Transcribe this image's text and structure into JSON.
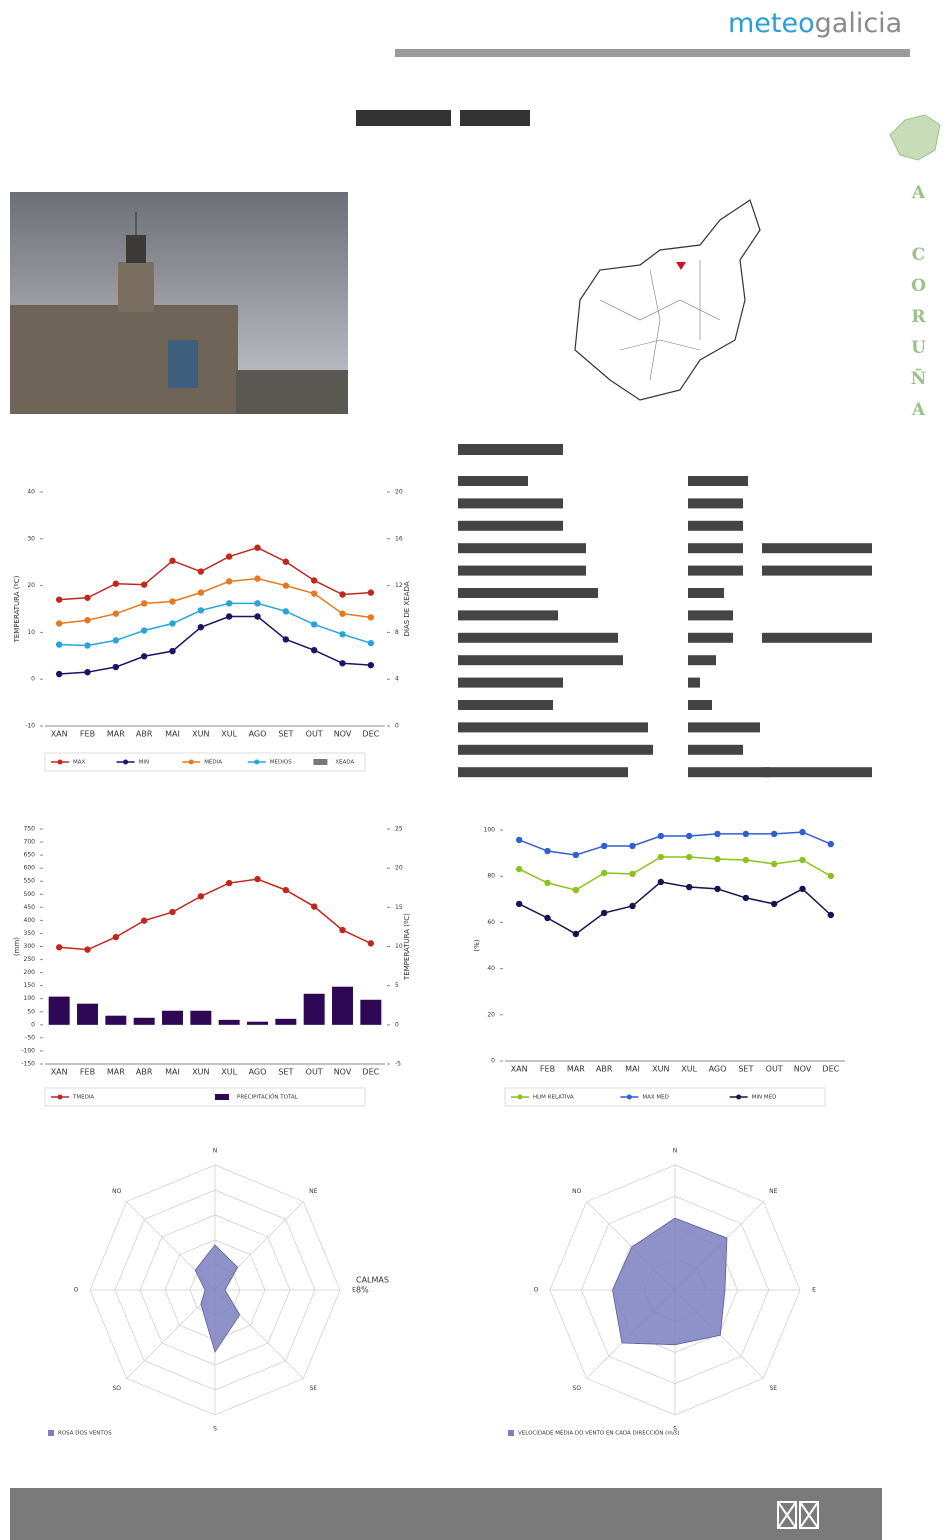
{
  "header": {
    "logo_a": "meteo",
    "logo_b": "galicia"
  },
  "province": "A CORUÑA",
  "chart_data": [
    {
      "type": "line",
      "categories": [
        "XAN",
        "FEB",
        "MAR",
        "ABR",
        "MAI",
        "XUN",
        "XUL",
        "AGO",
        "SET",
        "OUT",
        "NOV",
        "DEC"
      ],
      "ylabel": "TEMPERATURA (ºC)",
      "y2label": "DÍAS DE XEADA",
      "ylim": [
        -10,
        40
      ],
      "yticks": [
        -10,
        0,
        10,
        20,
        30,
        40
      ],
      "y2lim": [
        0,
        20
      ],
      "y2ticks": [
        0,
        4,
        8,
        12,
        16,
        20
      ],
      "series": [
        {
          "name": "MAX",
          "color": "#c0281e",
          "values": [
            17.0,
            17.4,
            20.4,
            20.2,
            25.3,
            23.0,
            26.2,
            28.1,
            25.1,
            21.1,
            18.1,
            18.5
          ]
        },
        {
          "name": "MIN",
          "color": "#1c1464",
          "values": [
            1.1,
            1.5,
            2.6,
            4.9,
            6.0,
            11.1,
            13.4,
            13.4,
            8.5,
            6.2,
            3.4,
            3.0
          ]
        },
        {
          "name": "MEDIA",
          "color": "#e8781e",
          "values": [
            11.9,
            12.6,
            14.0,
            16.2,
            16.6,
            18.5,
            20.9,
            21.5,
            20.0,
            18.3,
            14.0,
            13.2
          ]
        },
        {
          "name": "MEDIOS",
          "color": "#29a3dc",
          "values": [
            7.4,
            7.2,
            8.3,
            10.4,
            11.9,
            14.7,
            16.2,
            16.2,
            14.5,
            11.7,
            9.6,
            7.7
          ]
        },
        {
          "name": "XEADA",
          "color": "#777777",
          "kind": "bar",
          "axis": "y2",
          "values": [
            0,
            0,
            0,
            0,
            0,
            0,
            0,
            0,
            0,
            0,
            0,
            0
          ]
        }
      ]
    },
    {
      "type": "line",
      "categories": [
        "XAN",
        "FEB",
        "MAR",
        "ABR",
        "MAI",
        "XUN",
        "XUL",
        "AGO",
        "SET",
        "OUT",
        "NOV",
        "DEC"
      ],
      "ylabel": "(mm)",
      "y2label": "TEMPERATURA (ºC)",
      "ylim": [
        -150,
        750
      ],
      "yticks": [
        -150,
        -100,
        -50,
        0,
        50,
        100,
        150,
        200,
        250,
        300,
        350,
        400,
        450,
        500,
        550,
        600,
        650,
        700,
        750
      ],
      "y2lim": [
        -5,
        25
      ],
      "y2ticks": [
        -5,
        0,
        5,
        10,
        15,
        20,
        25
      ],
      "series": [
        {
          "name": "TMEDIA",
          "color": "#c0281e",
          "axis": "y2",
          "values": [
            9.9,
            9.6,
            11.2,
            13.3,
            14.4,
            16.4,
            18.1,
            18.6,
            17.2,
            15.1,
            12.1,
            10.4
          ]
        },
        {
          "name": "PRECIPITACIÓN TOTAL",
          "color": "#2e0854",
          "kind": "bar",
          "values": [
            108,
            81,
            35,
            27,
            54,
            54,
            19,
            12,
            23,
            119,
            146,
            96
          ]
        }
      ]
    },
    {
      "type": "line",
      "categories": [
        "XAN",
        "FEB",
        "MAR",
        "ABR",
        "MAI",
        "XUN",
        "XUL",
        "AGO",
        "SET",
        "OUT",
        "NOV",
        "DEC"
      ],
      "ylabel": "(%)",
      "ylim": [
        0,
        100
      ],
      "yticks": [
        0,
        20,
        40,
        60,
        80,
        100
      ],
      "series": [
        {
          "name": "HUM RELATIVA",
          "color": "#8cc21e",
          "values": [
            83.1,
            77.1,
            74.0,
            81.4,
            81.0,
            88.3,
            88.3,
            87.4,
            87.0,
            85.3,
            87.0,
            80.1
          ]
        },
        {
          "name": "MAX MED",
          "color": "#2f5fd0",
          "values": [
            95.7,
            90.9,
            89.2,
            93.1,
            93.1,
            97.4,
            97.4,
            98.3,
            98.3,
            98.3,
            99.1,
            93.9
          ]
        },
        {
          "name": "MIN MED",
          "color": "#141450",
          "values": [
            68.0,
            61.9,
            55.0,
            64.1,
            67.1,
            77.5,
            75.3,
            74.5,
            70.6,
            68.0,
            74.5,
            63.2
          ]
        }
      ]
    },
    {
      "type": "radar",
      "categories": [
        "N",
        "NE",
        "E",
        "SE",
        "S",
        "SO",
        "O",
        "NO"
      ],
      "rlim": [
        0,
        25
      ],
      "rticks": [
        5,
        10,
        15,
        20,
        25
      ],
      "annotation": [
        "CALMAS",
        "8%"
      ],
      "series": [
        {
          "name": "ROSA DOS VENTOS",
          "color": "#7b7fc0",
          "values": [
            9,
            6.4,
            2,
            7,
            12.4,
            4,
            2,
            5.6
          ]
        }
      ]
    },
    {
      "type": "radar",
      "categories": [
        "N",
        "NE",
        "E",
        "SE",
        "S",
        "SO",
        "O",
        "NO"
      ],
      "rlim": [
        0,
        8
      ],
      "rticks": [
        2,
        4,
        6,
        8
      ],
      "series": [
        {
          "name": "VELOCIDADE MEDIA DO VENTO EN CADA DIRECCIÓN (m/s)",
          "color": "#7b7fc0",
          "values": [
            4.6,
            4.7,
            3.2,
            4.1,
            3.5,
            4.8,
            4.0,
            3.9
          ]
        }
      ]
    }
  ]
}
